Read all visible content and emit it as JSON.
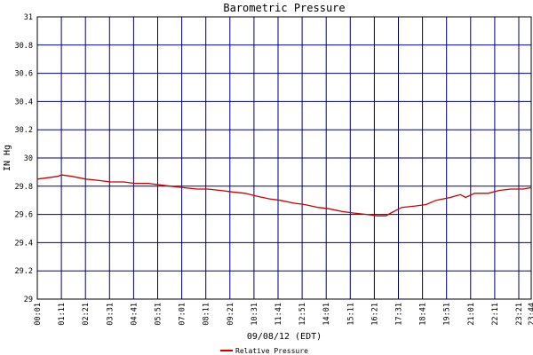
{
  "chart_data": {
    "type": "line",
    "title": "Barometric Pressure",
    "xlabel": "09/08/12 (EDT)",
    "ylabel": "IN Hg",
    "ylim": [
      29,
      31
    ],
    "y_ticks": [
      "29",
      "29.2",
      "29.4",
      "29.6",
      "29.8",
      "30",
      "30.2",
      "30.4",
      "30.6",
      "30.8",
      "31"
    ],
    "x_ticks": [
      "00:01",
      "01:11",
      "02:21",
      "03:31",
      "04:41",
      "05:51",
      "07:01",
      "08:11",
      "09:21",
      "10:31",
      "11:41",
      "12:51",
      "14:01",
      "15:11",
      "16:21",
      "17:31",
      "18:41",
      "19:51",
      "21:01",
      "22:11",
      "23:21",
      "23:44"
    ],
    "grid": true,
    "legend_position": "bottom",
    "colors": {
      "series": "#cc0000",
      "grid": "#000080",
      "axis": "#000000"
    },
    "series": [
      {
        "name": "Relative Pressure",
        "x": [
          "00:01",
          "00:30",
          "01:00",
          "01:11",
          "01:40",
          "02:21",
          "03:00",
          "03:31",
          "04:10",
          "04:41",
          "05:20",
          "05:51",
          "06:25",
          "07:01",
          "07:40",
          "08:11",
          "08:50",
          "09:21",
          "10:00",
          "10:31",
          "11:10",
          "11:41",
          "12:20",
          "12:51",
          "13:30",
          "14:01",
          "14:40",
          "15:11",
          "15:50",
          "16:21",
          "16:45",
          "17:00",
          "17:31",
          "18:10",
          "18:41",
          "19:10",
          "19:51",
          "20:20",
          "20:35",
          "21:01",
          "21:40",
          "22:11",
          "22:45",
          "23:21",
          "23:44"
        ],
        "values": [
          29.85,
          29.86,
          29.87,
          29.88,
          29.87,
          29.85,
          29.84,
          29.83,
          29.83,
          29.82,
          29.82,
          29.81,
          29.8,
          29.79,
          29.78,
          29.78,
          29.77,
          29.76,
          29.75,
          29.73,
          29.71,
          29.7,
          29.68,
          29.67,
          29.65,
          29.64,
          29.62,
          29.61,
          29.6,
          29.59,
          29.59,
          29.61,
          29.65,
          29.66,
          29.67,
          29.7,
          29.72,
          29.74,
          29.72,
          29.75,
          29.75,
          29.77,
          29.78,
          29.78,
          29.79
        ]
      }
    ]
  }
}
